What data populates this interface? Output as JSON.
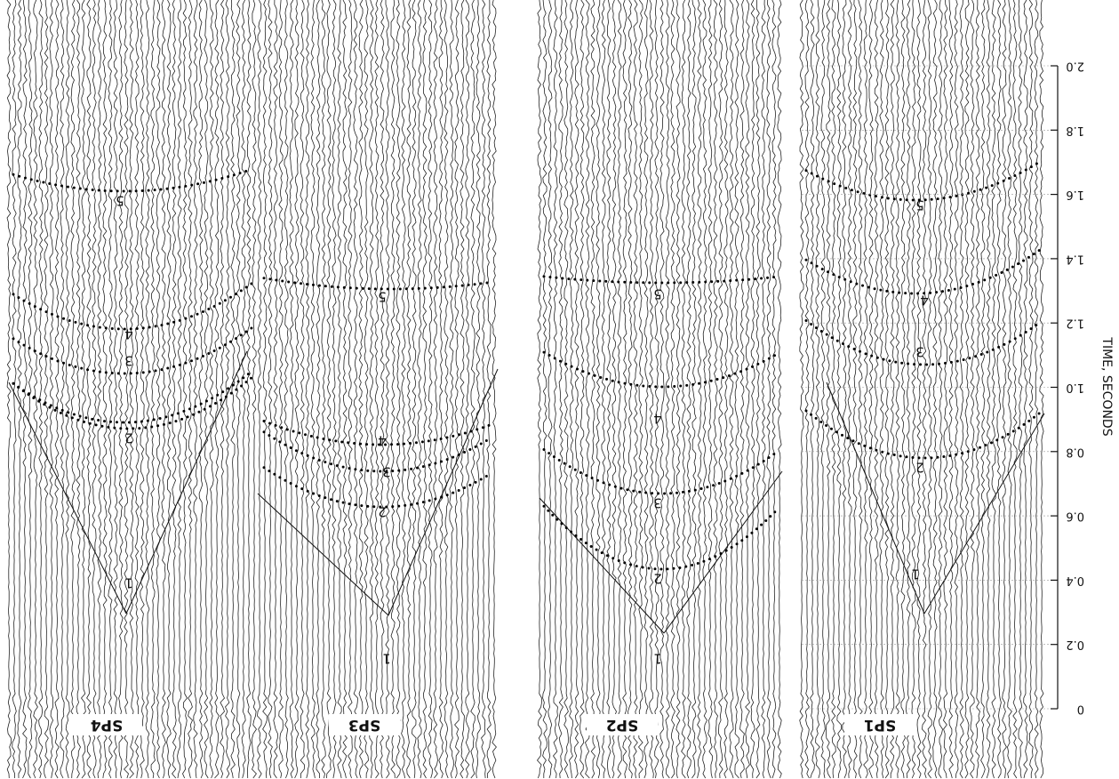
{
  "chart_data": {
    "type": "seismic-record",
    "y_label": "TIME, SECONDS",
    "ylim": [
      0,
      2
    ],
    "yticks": [
      0,
      0.2,
      0.4,
      0.6,
      0.8,
      {
        "value": 1,
        "label": "1.0"
      },
      1.2,
      1.4,
      1.6,
      1.8,
      {
        "value": 2,
        "label": "2.0"
      }
    ],
    "panels": [
      {
        "name": "SP4",
        "phases": [
          "1",
          "2",
          "3",
          "4",
          "5"
        ]
      },
      {
        "name": "SP3",
        "phases": [
          "1",
          "2",
          "3",
          "4",
          "5"
        ]
      },
      {
        "name": "SP2",
        "phases": [
          "1",
          "2",
          "3",
          "4",
          "5"
        ]
      },
      {
        "name": "SP1",
        "phases": [
          "1",
          "2",
          "3",
          "4",
          "5"
        ]
      }
    ]
  }
}
